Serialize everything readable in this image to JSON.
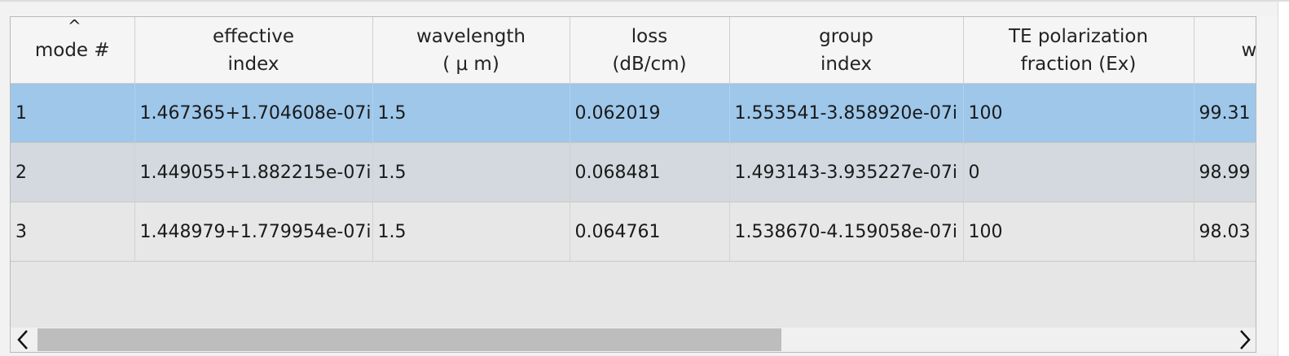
{
  "table": {
    "columns": [
      {
        "line1": "mode #",
        "line2": ""
      },
      {
        "line1": "effective",
        "line2": "index"
      },
      {
        "line1": "wavelength",
        "line2": "( μ m)"
      },
      {
        "line1": "loss",
        "line2": "(dB/cm)"
      },
      {
        "line1": "group",
        "line2": "index"
      },
      {
        "line1": "TE polarization",
        "line2": "fraction (Ex)"
      },
      {
        "line1": "w",
        "line2": ""
      }
    ],
    "sorted_column_indicator": "^",
    "rows": [
      {
        "cells": [
          "1",
          "1.467365+1.704608e-07i",
          "1.5",
          "0.062019",
          "1.553541-3.858920e-07i",
          "100",
          "99.31 ,"
        ]
      },
      {
        "cells": [
          "2",
          "1.449055+1.882215e-07i",
          "1.5",
          "0.068481",
          "1.493143-3.935227e-07i",
          "0",
          "98.99 ,"
        ]
      },
      {
        "cells": [
          "3",
          "1.448979+1.779954e-07i",
          "1.5",
          "0.064761",
          "1.538670-4.159058e-07i",
          "100",
          "98.03 ,"
        ]
      }
    ],
    "selected_row": 0
  },
  "scrollbar": {
    "left_arrow_icon": "chevron-left-icon",
    "right_arrow_icon": "chevron-right-icon",
    "thumb_fraction": 0.6,
    "scroll_position": 0
  },
  "colors": {
    "selected_row": "#9ec7ea",
    "row_alt": "#d3d9de",
    "row_default": "#e7e7e7",
    "header_bg": "#f5f5f5"
  }
}
